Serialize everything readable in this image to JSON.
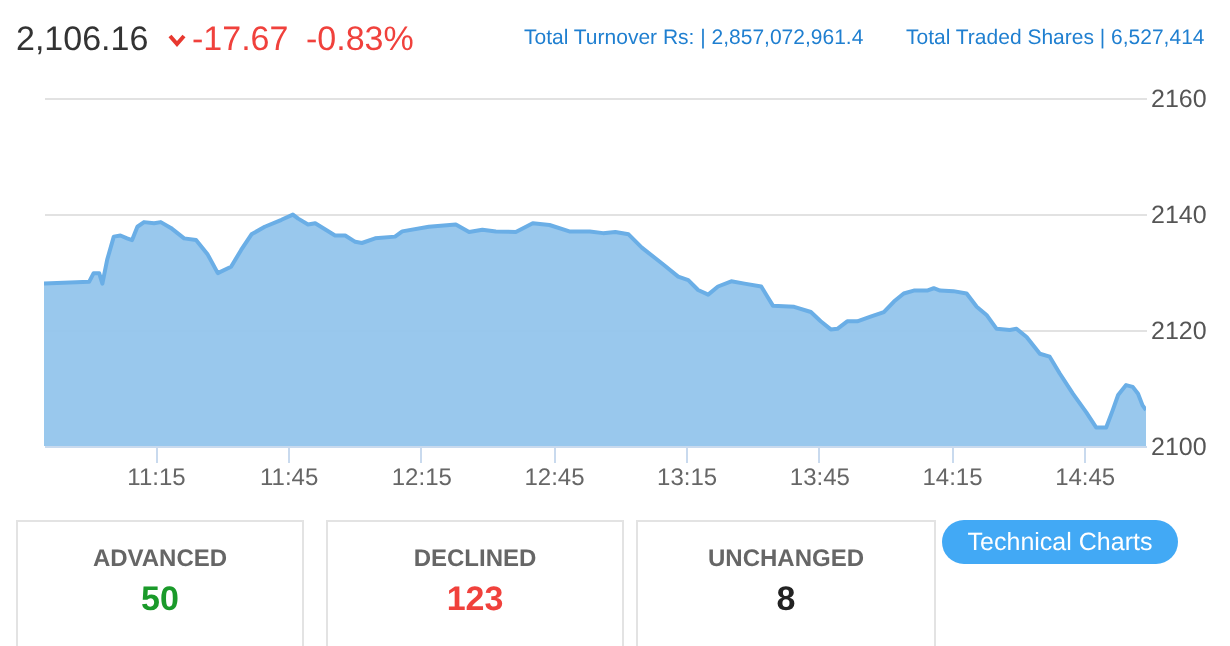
{
  "chart_data": {
    "type": "area",
    "color": "#94c5ec",
    "x": [
      10.83,
      11.0,
      11.017,
      11.038,
      11.05,
      11.068,
      11.093,
      11.118,
      11.143,
      11.162,
      11.182,
      11.207,
      11.245,
      11.27,
      11.308,
      11.358,
      11.403,
      11.447,
      11.485,
      11.535,
      11.573,
      11.612,
      11.662,
      11.725,
      11.768,
      11.788,
      11.825,
      11.852,
      11.927,
      11.965,
      12.003,
      12.028,
      12.078,
      12.153,
      12.18,
      12.28,
      12.382,
      12.432,
      12.482,
      12.533,
      12.608,
      12.672,
      12.735,
      12.81,
      12.887,
      12.937,
      12.983,
      13.033,
      13.083,
      13.158,
      13.22,
      13.258,
      13.295,
      13.333,
      13.37,
      13.42,
      13.47,
      13.533,
      13.557,
      13.577,
      13.657,
      13.72,
      13.757,
      13.795,
      13.82,
      13.857,
      13.895,
      13.945,
      13.995,
      14.033,
      14.07,
      14.108,
      14.158,
      14.183,
      14.207,
      14.257,
      14.307,
      14.345,
      14.382,
      14.42,
      14.47,
      14.495,
      14.533,
      14.583,
      14.62,
      14.658,
      14.708,
      14.758,
      14.795,
      14.833,
      14.857,
      14.878,
      14.908,
      14.933,
      14.953,
      14.97,
      14.983
    ],
    "values": [
      2128.0,
      2128.3,
      2129.8,
      2129.8,
      2128.0,
      2132.1,
      2136.1,
      2136.3,
      2135.8,
      2135.5,
      2137.8,
      2138.6,
      2138.4,
      2138.6,
      2137.6,
      2135.8,
      2135.5,
      2133.0,
      2129.8,
      2130.9,
      2133.8,
      2136.5,
      2137.8,
      2139.0,
      2139.9,
      2139.2,
      2138.2,
      2138.4,
      2136.3,
      2136.3,
      2135.2,
      2135.0,
      2135.8,
      2136.1,
      2137.0,
      2137.8,
      2138.2,
      2136.9,
      2137.3,
      2137.0,
      2136.9,
      2138.4,
      2138.1,
      2137.0,
      2137.0,
      2136.7,
      2136.9,
      2136.5,
      2134.2,
      2131.5,
      2129.2,
      2128.6,
      2126.9,
      2126.1,
      2127.5,
      2128.4,
      2128.0,
      2127.5,
      2125.7,
      2124.2,
      2124.0,
      2123.1,
      2121.5,
      2120.1,
      2120.2,
      2121.5,
      2121.5,
      2122.3,
      2123.1,
      2124.9,
      2126.3,
      2126.8,
      2126.8,
      2127.2,
      2126.8,
      2126.7,
      2126.3,
      2124.0,
      2122.6,
      2120.2,
      2120.0,
      2120.2,
      2118.8,
      2115.9,
      2115.4,
      2112.5,
      2109.0,
      2105.8,
      2103.2,
      2103.2,
      2106.1,
      2108.8,
      2110.5,
      2110.2,
      2109.0,
      2107.0,
      2106.2
    ],
    "xlim": [
      10.83,
      14.983
    ],
    "ylim": [
      2100,
      2160
    ],
    "xticks": [
      {
        "value": 11.25,
        "label": "11:15"
      },
      {
        "value": 11.75,
        "label": "11:45"
      },
      {
        "value": 12.25,
        "label": "12:15"
      },
      {
        "value": 12.75,
        "label": "12:45"
      },
      {
        "value": 13.25,
        "label": "13:15"
      },
      {
        "value": 13.75,
        "label": "13:45"
      },
      {
        "value": 14.25,
        "label": "14:15"
      },
      {
        "value": 14.75,
        "label": "14:45"
      }
    ],
    "yticks": [
      2100,
      2120,
      2140,
      2160
    ],
    "grid": "y",
    "annotations": [
      "2,106.16",
      "-17.67",
      "-0.83%",
      "Total Turnover Rs: | 2,857,072,961.4",
      "Total Traded Shares | 6,527,414",
      "ADVANCED",
      "50",
      "DECLINED",
      "123",
      "UNCHANGED",
      "8",
      "Technical Charts"
    ]
  }
}
